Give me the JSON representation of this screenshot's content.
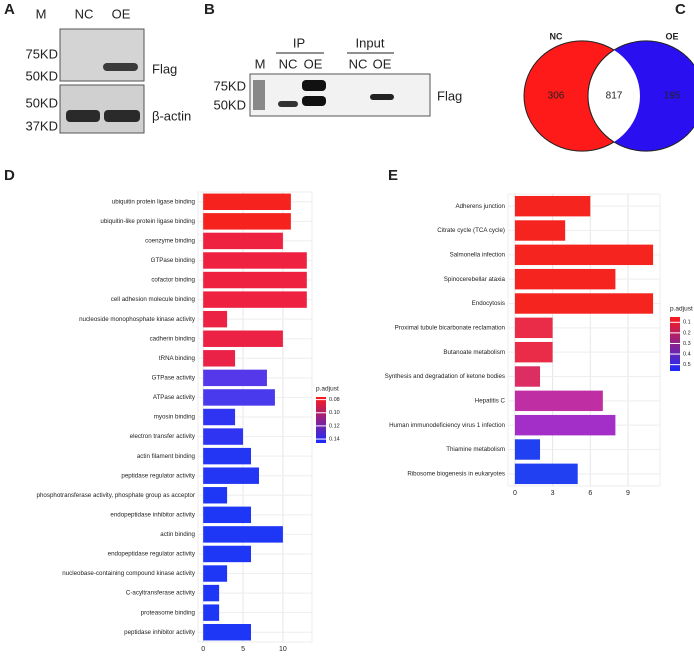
{
  "panels": {
    "A": {
      "label": "A",
      "lanes": [
        "M",
        "NC",
        "OE"
      ],
      "markers": [
        "75KD",
        "50KD",
        "50KD",
        "37KD"
      ],
      "bands": [
        "Flag",
        "β-actin"
      ]
    },
    "B": {
      "label": "B",
      "groups": [
        "IP",
        "Input"
      ],
      "lanes": [
        "M",
        "NC",
        "OE",
        "NC",
        "OE"
      ],
      "markers": [
        "75KD",
        "50KD"
      ],
      "band": "Flag"
    },
    "C": {
      "label": "C"
    },
    "D": {
      "label": "D"
    },
    "E": {
      "label": "E"
    }
  },
  "chart_data": [
    {
      "type": "venn",
      "sets": [
        {
          "name": "NC",
          "color": "#ff1a1a"
        },
        {
          "name": "OE",
          "color": "#2a10f0"
        }
      ],
      "values": [
        306,
        817,
        195
      ]
    },
    {
      "type": "barh",
      "categories": [
        "ubiquitin protein ligase binding",
        "ubiquitin-like protein ligase binding",
        "coenzyme binding",
        "GTPase binding",
        "cofactor binding",
        "cell adhesion molecule binding",
        "nucleoside monophosphate kinase activity",
        "cadherin binding",
        "tRNA binding",
        "GTPase activity",
        "ATPase activity",
        "myosin binding",
        "electron transfer activity",
        "actin filament binding",
        "peptidase regulator activity",
        "phosphotransferase activity, phosphate group as acceptor",
        "endopeptidase inhibitor activity",
        "actin binding",
        "endopeptidase regulator activity",
        "nucleobase-containing compound kinase activity",
        "C-acyltransferase activity",
        "proteasome binding",
        "peptidase inhibitor activity"
      ],
      "values": [
        11,
        11,
        10,
        13,
        13,
        13,
        3,
        10,
        4,
        8,
        9,
        4,
        5,
        6,
        7,
        3,
        6,
        10,
        6,
        3,
        2,
        2,
        6
      ],
      "colors": [
        "#f5221e",
        "#f5221e",
        "#ee2240",
        "#ee2240",
        "#ee2240",
        "#ee2240",
        "#ec2244",
        "#ec2244",
        "#ea2248",
        "#5538ea",
        "#4a3aee",
        "#2e34f2",
        "#2e34f2",
        "#2236f4",
        "#2236f4",
        "#1e36f5",
        "#1e36f5",
        "#1e36f5",
        "#1e36f5",
        "#1e36f5",
        "#1e36f5",
        "#1e36f5",
        "#1e36f5"
      ],
      "xlim": [
        -0.65,
        13.65
      ],
      "xticks": [
        0,
        5,
        10
      ],
      "grid": true,
      "colorbar": {
        "title": "p.adjust",
        "colors": [
          "#ff1a1a",
          "#1a2aff"
        ],
        "clim": [
          0.076,
          0.146
        ],
        "ticks": [
          0.08,
          {
            "value": 0.1,
            "label": "0.10"
          },
          0.12,
          0.14
        ]
      }
    },
    {
      "type": "barh",
      "categories": [
        "Adherens junction",
        "Citrate cycle (TCA cycle)",
        "Salmonella infection",
        "Spinocerebellar ataxia",
        "Endocytosis",
        "Proximal tubule bicarbonate reclamation",
        "Butanoate metabolism",
        "Synthesis and degradation of ketone bodies",
        "Hepatitis C",
        "Human immunodeficiency virus 1 infection",
        "Thiamine metabolism",
        "Ribosome biogenesis in eukaryotes"
      ],
      "values": [
        6,
        4,
        11,
        8,
        11,
        3,
        3,
        2,
        7,
        8,
        2,
        5
      ],
      "colors": [
        "#f5241e",
        "#f5241e",
        "#f5241e",
        "#f5241e",
        "#f5241e",
        "#ea2c48",
        "#ea2c48",
        "#dc2e62",
        "#c02ea4",
        "#a42ec8",
        "#2040f2",
        "#2040f2"
      ],
      "xlim": [
        -0.55,
        11.55
      ],
      "xticks": [
        0,
        3,
        6,
        9
      ],
      "grid": true,
      "colorbar": {
        "title": "p.adjust",
        "colors": [
          "#ff1a1a",
          "#1a2aff"
        ],
        "clim": [
          0.05,
          0.56
        ],
        "ticks": [
          0.1,
          0.2,
          0.3,
          0.4,
          0.5
        ]
      }
    }
  ]
}
